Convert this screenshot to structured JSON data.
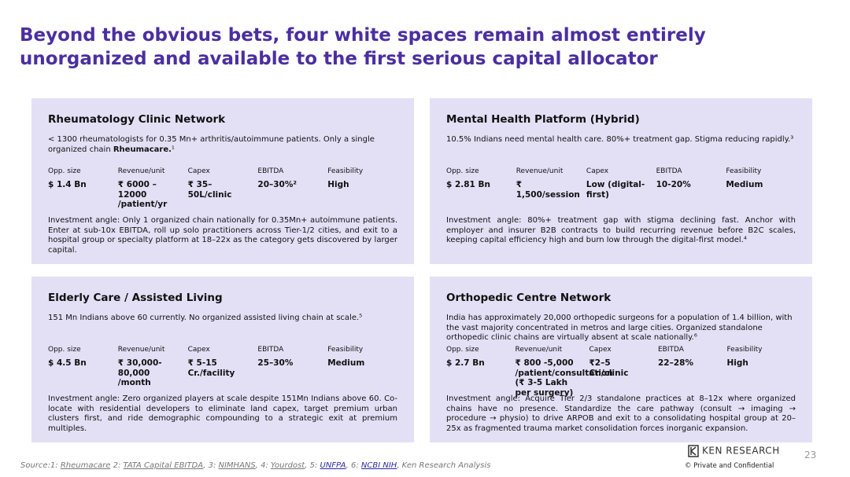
{
  "header": {
    "title": "Beyond the obvious bets, four white spaces remain almost entirely unorganized and available to the first serious capital allocator"
  },
  "cards": [
    {
      "title": "Rheumatology Clinic Network",
      "description": [
        {
          "text": "< 1300 rheumatologists for 0.35 Mn+ arthritis/autoimmune patients. Only a single organized chain "
        },
        {
          "text": "Rheumacare.",
          "bold": true
        },
        {
          "text": "¹"
        }
      ],
      "metrics": [
        {
          "label": "Opp. size",
          "value": "$ 1.4 Bn"
        },
        {
          "label": "Revenue/unit",
          "value": "₹ 6000 – 12000 /patient/yr"
        },
        {
          "label": "Capex",
          "value": "₹ 35–50L/clinic"
        },
        {
          "label": "EBITDA",
          "value": "20–30%²"
        },
        {
          "label": "Feasibility",
          "value": "High"
        }
      ],
      "angle": "Investment angle: Only 1 organized chain nationally for 0.35Mn+ autoimmune patients. Enter at sub-10x EBITDA, roll up solo practitioners across Tier-1/2 cities, and exit to a hospital group or specialty platform at 18–22x as the category gets discovered by larger capital."
    },
    {
      "title": "Mental Health Platform (Hybrid)",
      "description": [
        {
          "text": "10.5%  Indians need mental health care. 80%+ treatment gap. Stigma reducing rapidly.³"
        }
      ],
      "metrics": [
        {
          "label": "Opp. size",
          "value": "$ 2.81 Bn"
        },
        {
          "label": "Revenue/unit",
          "value": "₹ 1,500/session"
        },
        {
          "label": "Capex",
          "value": "Low (digital-first)"
        },
        {
          "label": "EBITDA",
          "value": "10-20%"
        },
        {
          "label": "Feasibility",
          "value": "Medium"
        }
      ],
      "angle": "Investment angle: 80%+ treatment gap with stigma declining fast. Anchor with employer and insurer B2B contracts to build recurring revenue before B2C scales, keeping capital efficiency high and burn low through the digital-first model.⁴"
    },
    {
      "title": "Elderly Care / Assisted Living",
      "description": [
        {
          "text": "151 Mn Indians above 60 currently. No organized assisted living chain at scale.⁵"
        }
      ],
      "metrics": [
        {
          "label": "Opp. size",
          "value": "$ 4.5 Bn"
        },
        {
          "label": "Revenue/unit",
          "value": "₹ 30,000-80,000 /month"
        },
        {
          "label": "Capex",
          "value": "₹ 5-15 Cr./facility"
        },
        {
          "label": "EBITDA",
          "value": "25–30%"
        },
        {
          "label": "Feasibility",
          "value": "Medium"
        }
      ],
      "angle": "Investment angle: Zero organized players at scale despite 151Mn Indians above 60. Co-locate with residential developers to eliminate land capex, target premium urban clusters first, and ride demographic compounding to a strategic exit at premium multiples."
    },
    {
      "title": "Orthopedic Centre Network",
      "description": [
        {
          "text": "India has approximately 20,000 orthopedic surgeons for a population of 1.4 billion, with the vast majority concentrated in metros and large cities. Organized standalone orthopedic clinic chains are virtually absent at scale nationally.⁶"
        }
      ],
      "metrics": [
        {
          "label": "Opp. size",
          "value": "$ 2.7 Bn"
        },
        {
          "label": "Revenue/unit",
          "value": "₹ 800 -5,000 /patient/consultation (₹ 3-5 Lakh per surgery)"
        },
        {
          "label": "Capex",
          "value": "₹2–5 Cr./clinic"
        },
        {
          "label": "EBITDA",
          "value": "22–28%"
        },
        {
          "label": "Feasibility",
          "value": "High"
        }
      ],
      "angle": "Investment angle: Acquire Tier 2/3 standalone practices at 8–12x where organized chains have no presence. Standardize the care pathway (consult → imaging → procedure → physio) to drive ARPOB and exit to a consolidating hospital group at 20–25x as fragmented trauma market consolidation forces inorganic expansion."
    }
  ],
  "footer": {
    "source": [
      {
        "text": "Source:1: "
      },
      {
        "text": "Rheumacare",
        "link": true
      },
      {
        "text": " 2: "
      },
      {
        "text": "TATA Capital EBITDA",
        "link": true
      },
      {
        "text": ", 3: "
      },
      {
        "text": "NIMHANS",
        "link": true
      },
      {
        "text": ", 4: "
      },
      {
        "text": "Yourdost",
        "link": true
      },
      {
        "text": ", 5: "
      },
      {
        "text": "UNFPA",
        "link": true,
        "color": "#2a2aa8"
      },
      {
        "text": ", 6: "
      },
      {
        "text": "NCBI NIH",
        "link": true,
        "color": "#2a2aa8"
      },
      {
        "text": ", Ken Research Analysis"
      }
    ],
    "page_number": "23",
    "logo": "KEN RESEARCH",
    "confidential": "©   Private and Confidential"
  }
}
